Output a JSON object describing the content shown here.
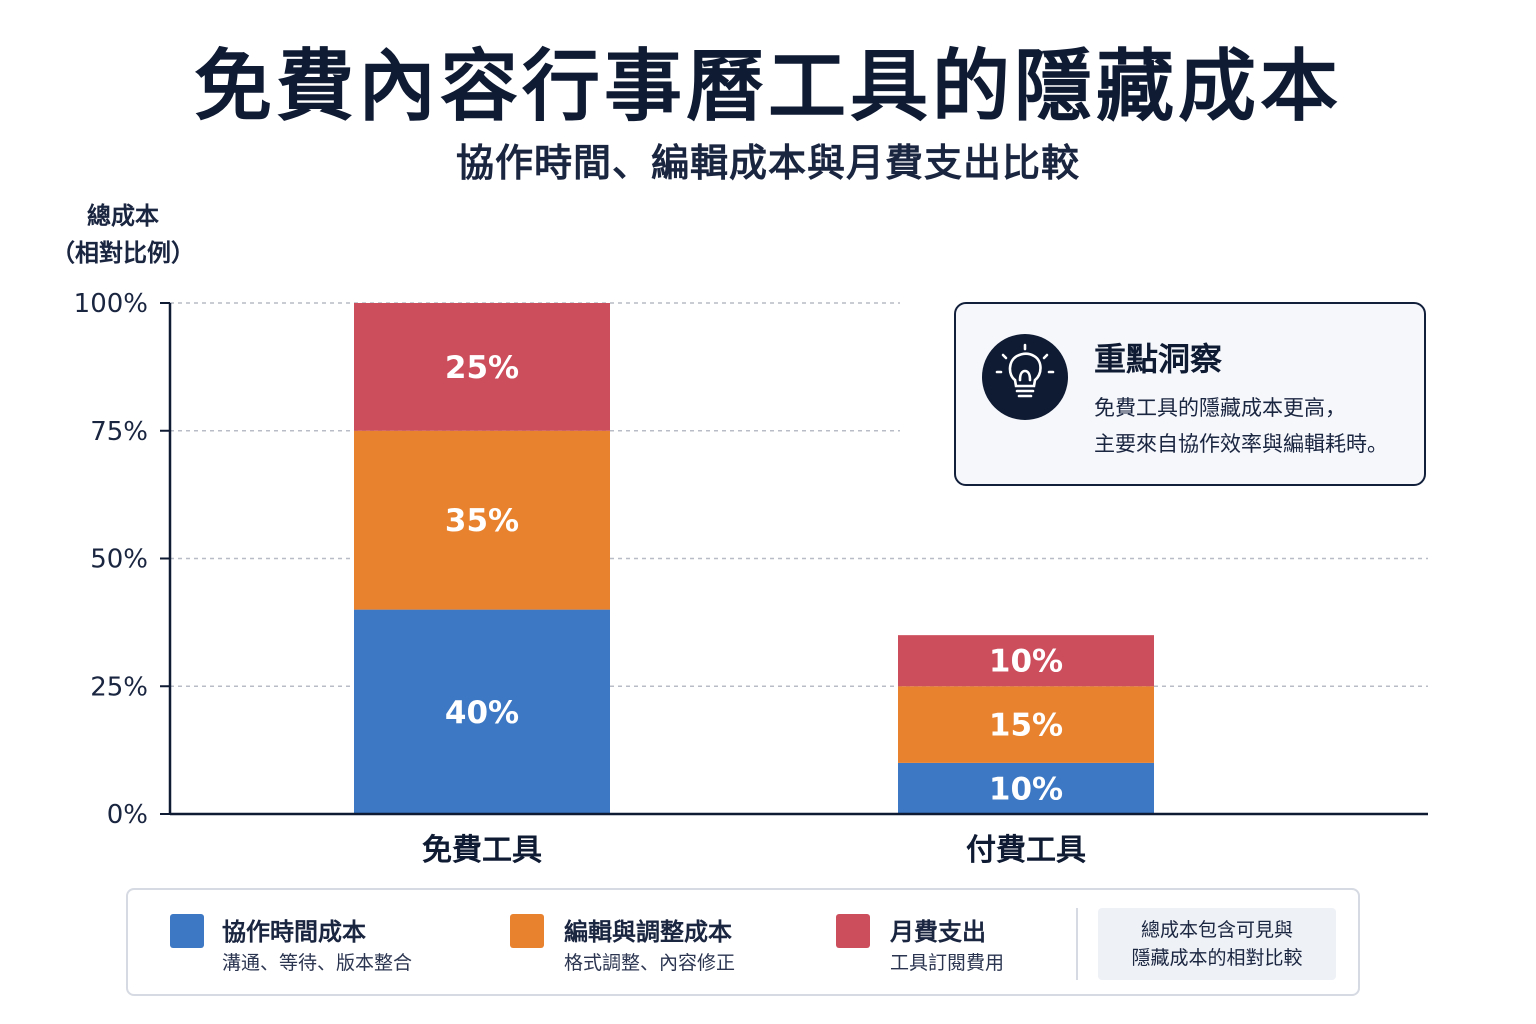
{
  "title": "免費內容行事曆工具的隱藏成本",
  "subtitle": "協作時間、編輯成本與月費支出比較",
  "colors": {
    "collab": "#3d78c4",
    "edit": "#e8822f",
    "fee": "#cc4e5c",
    "axis": "#0f1b33",
    "grid": "#b8bcc6"
  },
  "chart_data": {
    "type": "bar",
    "stacked": true,
    "ylabel_line1": "總成本",
    "ylabel_line2": "（相對比例）",
    "yticks": [
      "0%",
      "25%",
      "50%",
      "75%",
      "100%"
    ],
    "ylim": [
      0,
      100
    ],
    "grid": true,
    "categories": [
      "免費工具",
      "付費工具"
    ],
    "series": [
      {
        "name": "協作時間成本",
        "values": [
          40,
          10
        ],
        "labels": [
          "40%",
          "10%"
        ],
        "color_key": "collab"
      },
      {
        "name": "編輯與調整成本",
        "values": [
          35,
          15
        ],
        "labels": [
          "35%",
          "15%"
        ],
        "color_key": "edit"
      },
      {
        "name": "月費支出",
        "values": [
          25,
          10
        ],
        "labels": [
          "25%",
          "10%"
        ],
        "color_key": "fee"
      }
    ]
  },
  "insight": {
    "icon": "lightbulb-icon",
    "title": "重點洞察",
    "line1": "免費工具的隱藏成本更高，",
    "line2": "主要來自協作效率與編輯耗時。"
  },
  "legend": {
    "items": [
      {
        "label": "協作時間成本",
        "desc": "溝通、等待、版本整合"
      },
      {
        "label": "編輯與調整成本",
        "desc": "格式調整、內容修正"
      },
      {
        "label": "月費支出",
        "desc": "工具訂閱費用"
      }
    ],
    "note_line1": "總成本包含可見與",
    "note_line2": "隱藏成本的相對比較"
  }
}
